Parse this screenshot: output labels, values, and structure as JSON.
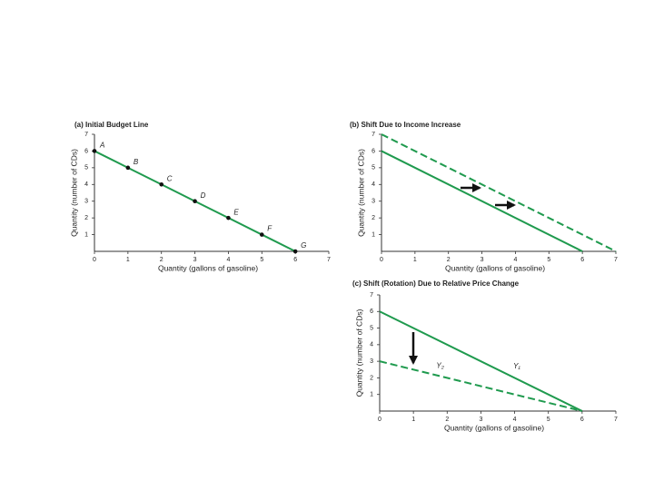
{
  "chart_data": [
    {
      "type": "line",
      "title": "(a) Initial Budget Line",
      "xlabel": "Quantity (gallons of gasoline)",
      "ylabel": "Quantity (number of CDs)",
      "xlim": [
        0,
        7
      ],
      "ylim": [
        0,
        7
      ],
      "xticks": [
        0,
        1,
        2,
        3,
        4,
        5,
        6,
        7
      ],
      "yticks": [
        1,
        2,
        3,
        4,
        5,
        6,
        7
      ],
      "series": [
        {
          "color": "#1f9a4e",
          "style": "solid",
          "markers": true,
          "x": [
            0,
            1,
            2,
            3,
            4,
            5,
            6
          ],
          "values": [
            6,
            5,
            4,
            3,
            2,
            1,
            0
          ],
          "point_labels": [
            "A",
            "B",
            "C",
            "D",
            "E",
            "F",
            "G"
          ]
        }
      ]
    },
    {
      "type": "line",
      "title": "(b) Shift Due to Income Increase",
      "xlabel": "Quantity (gallons of gasoline)",
      "ylabel": "Quantity (number of CDs)",
      "xlim": [
        0,
        7
      ],
      "ylim": [
        0,
        7
      ],
      "xticks": [
        0,
        1,
        2,
        3,
        4,
        5,
        6,
        7
      ],
      "yticks": [
        1,
        2,
        3,
        4,
        5,
        6,
        7
      ],
      "series": [
        {
          "color": "#1f9a4e",
          "style": "solid",
          "x": [
            0,
            6
          ],
          "values": [
            6,
            0
          ]
        },
        {
          "color": "#1f9a4e",
          "style": "dashed",
          "x": [
            0,
            7
          ],
          "values": [
            7,
            0
          ]
        }
      ]
    },
    {
      "type": "line",
      "title": "(c) Shift (Rotation) Due to Relative Price Change",
      "xlabel": "Quantity (gallons of gasoline)",
      "ylabel": "Quantity (number of CDs)",
      "xlim": [
        0,
        7
      ],
      "ylim": [
        0,
        7
      ],
      "xticks": [
        0,
        1,
        2,
        3,
        4,
        5,
        6,
        7
      ],
      "yticks": [
        1,
        2,
        3,
        4,
        5,
        6,
        7
      ],
      "series": [
        {
          "name": "Y₁",
          "color": "#1f9a4e",
          "style": "solid",
          "x": [
            0,
            6
          ],
          "values": [
            6,
            0
          ]
        },
        {
          "name": "Y₂",
          "color": "#1f9a4e",
          "style": "dashed",
          "x": [
            0,
            6
          ],
          "values": [
            3,
            0
          ]
        }
      ]
    }
  ]
}
